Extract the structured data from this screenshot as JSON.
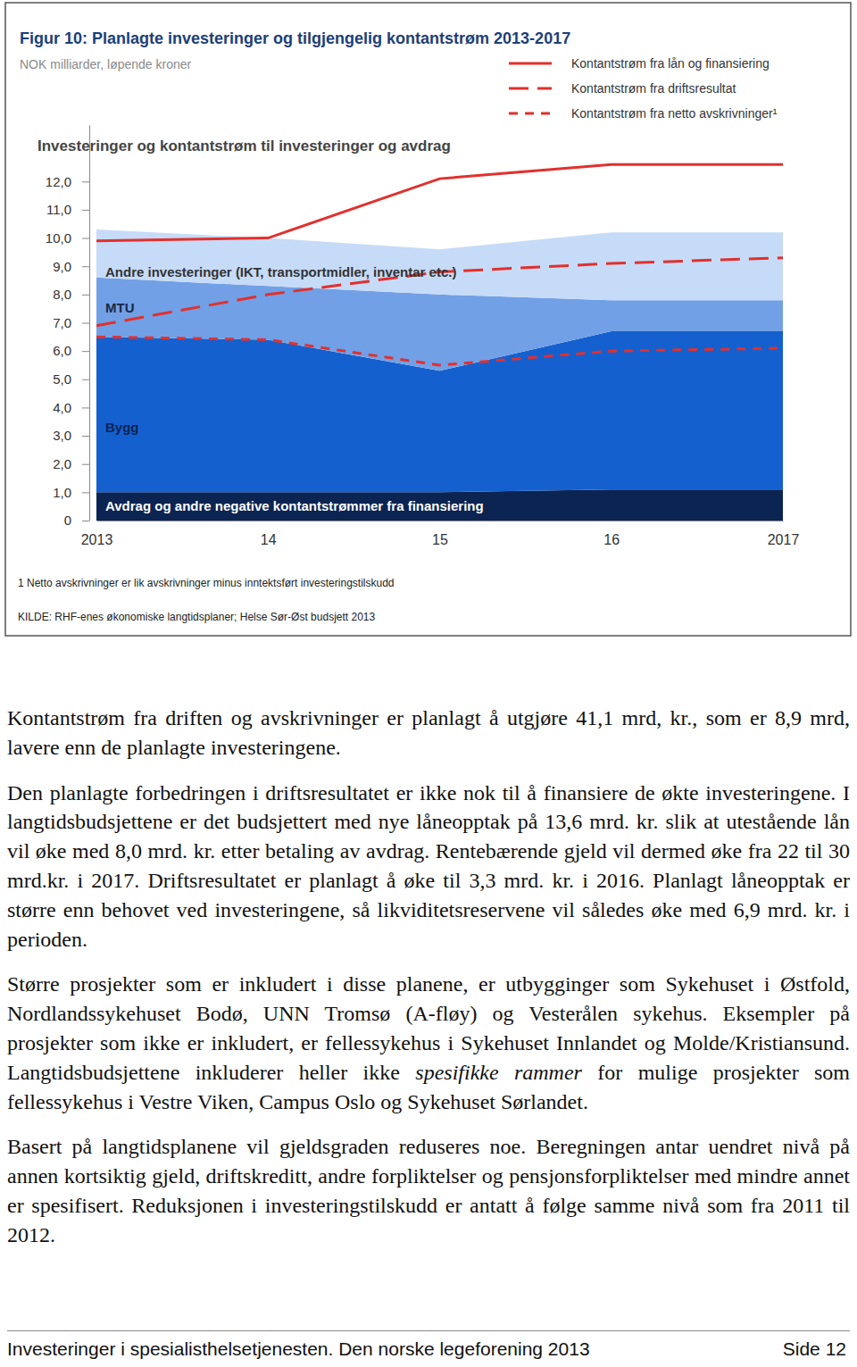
{
  "figure": {
    "title": "Figur 10: Planlagte investeringer og tilgjengelig kontantstrøm 2013-2017",
    "subtitle": "NOK milliarder, løpende kroner",
    "footnote": "1 Netto avskrivninger er lik avskrivninger minus inntektsført investeringstilskudd",
    "source": "KILDE: RHF-enes økonomiske langtidsplaner; Helse Sør-Øst budsjett 2013"
  },
  "chart_data": {
    "type": "area",
    "title": "Investeringer og kontantstrøm til investeringer og avdrag",
    "categories": [
      "2013",
      "14",
      "15",
      "16",
      "2017"
    ],
    "stacked": true,
    "ylim": [
      0,
      14
    ],
    "yticks": [
      0,
      {
        "value": 1,
        "label": "1,0"
      },
      {
        "value": 2,
        "label": "2,0"
      },
      {
        "value": 3,
        "label": "3,0"
      },
      {
        "value": 4,
        "label": "4,0"
      },
      {
        "value": 5,
        "label": "5,0"
      },
      {
        "value": 6,
        "label": "6,0"
      },
      {
        "value": 7,
        "label": "7,0"
      },
      {
        "value": 8,
        "label": "8,0"
      },
      {
        "value": 9,
        "label": "9,0"
      },
      {
        "value": 10,
        "label": "10,0"
      },
      {
        "value": 11,
        "label": "11,0"
      },
      {
        "value": 12,
        "label": "12,0"
      }
    ],
    "series": [
      {
        "name": "Avdrag og andre negative kontantstrømmer fra finansiering",
        "type": "area",
        "color": "#0b2452",
        "values": [
          1.0,
          1.0,
          1.0,
          1.1,
          1.1
        ]
      },
      {
        "name": "Bygg",
        "type": "area",
        "color": "#1560cf",
        "values": [
          5.5,
          5.4,
          4.3,
          5.6,
          5.6
        ]
      },
      {
        "name": "MTU",
        "type": "area",
        "color": "#72a0e6",
        "values": [
          2.1,
          1.9,
          2.7,
          1.1,
          1.1
        ]
      },
      {
        "name": "Andre investeringer (IKT, transportmidler, inventar etc.)",
        "type": "area",
        "color": "#c6dbf7",
        "values": [
          1.7,
          1.7,
          1.6,
          2.4,
          2.4
        ]
      },
      {
        "name": "Kontantstrøm fra lån og finansiering",
        "type": "line",
        "color": "#e2302d",
        "line_style": "solid",
        "values": [
          9.9,
          10.0,
          12.1,
          12.6,
          12.6
        ]
      },
      {
        "name": "Kontantstrøm fra driftsresultat",
        "type": "line",
        "color": "#e2302d",
        "line_style": "longdash",
        "values": [
          6.9,
          8.0,
          8.8,
          9.1,
          9.3
        ]
      },
      {
        "name": "Kontantstrøm fra netto avskrivninger¹",
        "type": "line",
        "color": "#e2302d",
        "line_style": "dash",
        "values": [
          6.5,
          6.4,
          5.5,
          6.0,
          6.1
        ]
      }
    ]
  },
  "paragraphs": [
    {
      "runs": [
        {
          "text": "Kontantstrøm fra driften og avskrivninger er planlagt å utgjøre 41,1 mrd, kr., som er 8,9 mrd, lavere enn de planlagte investeringene."
        }
      ]
    },
    {
      "runs": [
        {
          "text": "Den planlagte forbedringen i driftsresultatet er ikke nok til å finansiere de økte investeringene. I langtidsbudsjettene er det budsjettert med nye låneopptak på 13,6 mrd. kr. slik at utestående lån vil øke med 8,0 mrd. kr. etter betaling av avdrag. Rentebærende gjeld vil dermed øke fra 22 til 30 mrd.kr. i 2017. Driftsresultatet er planlagt å øke til 3,3 mrd. kr. i 2016. Planlagt låneopptak er større enn behovet ved investeringene, så likviditetsreservene vil således øke med 6,9 mrd. kr. i perioden."
        }
      ]
    },
    {
      "runs": [
        {
          "text": "Større prosjekter som er inkludert i disse planene, er utbygginger som Sykehuset i Østfold, Nordlandssykehuset Bodø, UNN Tromsø (A-fløy) og Vesterålen sykehus. Eksempler på prosjekter som ikke er inkludert, er fellessykehus i Sykehuset Innlandet og Molde/Kristiansund. Langtidsbudsjettene inkluderer heller ikke "
        },
        {
          "text": "spesifikke rammer",
          "style": "italic"
        },
        {
          "text": " for mulige prosjekter som fellessykehus i Vestre Viken, Campus Oslo og Sykehuset Sørlandet."
        }
      ]
    },
    {
      "runs": [
        {
          "text": "Basert på langtidsplanene vil gjeldsgraden reduseres noe. Beregningen antar uendret nivå på annen kortsiktig gjeld, driftskreditt, andre forpliktelser og pensjonsforpliktelser med mindre annet er spesifisert. Reduksjonen i investeringstilskudd er antatt å følge samme nivå som fra 2011 til 2012."
        }
      ]
    }
  ],
  "footer": {
    "left": "Investeringer i spesialisthelsetjenesten. Den norske legeforening 2013",
    "right": "Side 12"
  }
}
